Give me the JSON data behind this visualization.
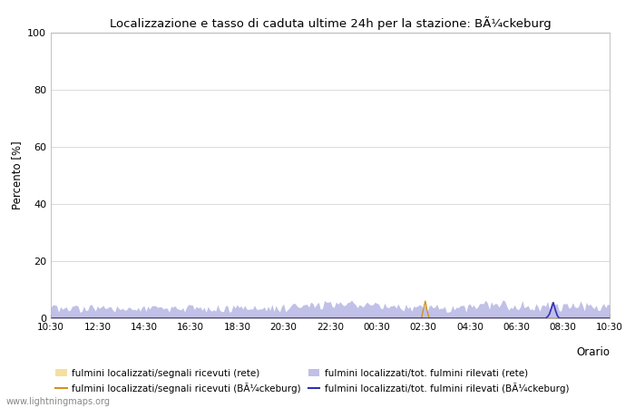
{
  "title": "Localizzazione e tasso di caduta ultime 24h per la stazione: BÃ¼ckeburg",
  "ylabel": "Percento [%]",
  "xlabel_right": "Orario",
  "ylim": [
    0,
    100
  ],
  "yticks": [
    0,
    20,
    40,
    60,
    80,
    100
  ],
  "xtick_labels": [
    "10:30",
    "12:30",
    "14:30",
    "16:30",
    "18:30",
    "20:30",
    "22:30",
    "00:30",
    "02:30",
    "04:30",
    "06:30",
    "08:30",
    "10:30"
  ],
  "watermark": "www.lightningmaps.org",
  "fill_rete_segnali_color": "#f5dfa0",
  "fill_rete_tot_color": "#c0c0e8",
  "line_station_segnali_color": "#d49020",
  "line_station_tot_color": "#3030b0",
  "legend_labels": [
    "fulmini localizzati/segnali ricevuti (rete)",
    "fulmini localizzati/segnali ricevuti (BÃ¼ckeburg)",
    "fulmini localizzati/tot. fulmini rilevati (rete)",
    "fulmini localizzati/tot. fulmini rilevati (BÃ¼ckeburg)"
  ],
  "n_points": 289,
  "figsize": [
    7.0,
    4.5
  ],
  "dpi": 100
}
